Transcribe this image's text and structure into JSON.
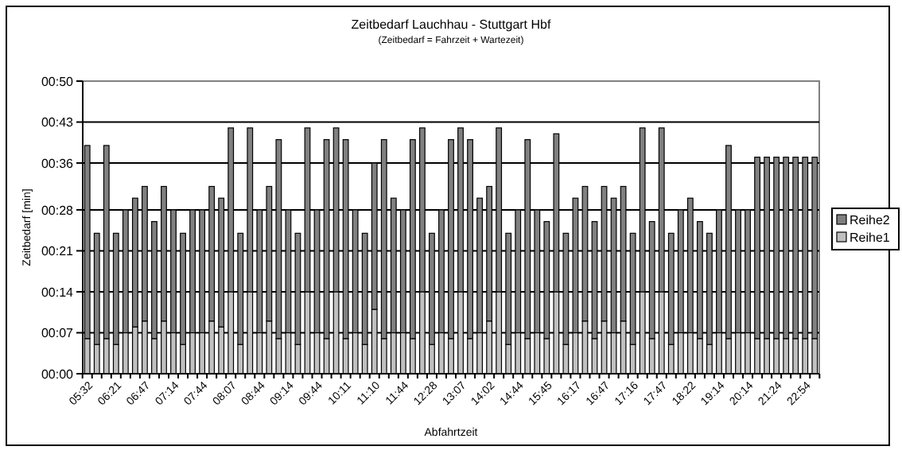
{
  "chart_data": {
    "type": "bar",
    "stacked": true,
    "title": "Zeitbedarf Lauchhau - Stuttgart Hbf",
    "subtitle": "(Zeitbedarf = Fahrzeit + Wartezeit)",
    "xlabel": "Abfahrtzeit",
    "ylabel": "Zeitbedarf [min]",
    "categories": [
      "05:32",
      null,
      null,
      "06:21",
      null,
      null,
      "06:47",
      null,
      null,
      "07:14",
      null,
      null,
      "07:44",
      null,
      null,
      "08:07",
      null,
      null,
      "08:44",
      null,
      null,
      "09:14",
      null,
      null,
      "09:44",
      null,
      null,
      "10:11",
      null,
      null,
      "11:10",
      null,
      null,
      "11:44",
      null,
      null,
      "12:28",
      null,
      null,
      "13:07",
      null,
      null,
      "14:02",
      null,
      null,
      "14:44",
      null,
      null,
      "15:45",
      null,
      null,
      "16:17",
      null,
      null,
      "16:47",
      null,
      null,
      "17:16",
      null,
      null,
      "17:47",
      null,
      null,
      "18:22",
      null,
      null,
      "19:14",
      null,
      null,
      "20:14",
      null,
      null,
      "21:24",
      null,
      null,
      "22:54",
      null
    ],
    "series": [
      {
        "name": "Reihe1",
        "color": "#c0c0c0",
        "values": [
          6,
          5,
          6,
          5,
          7,
          8,
          9,
          6,
          9,
          7,
          5,
          7,
          7,
          9,
          8,
          14,
          5,
          14,
          7,
          9,
          6,
          7,
          5,
          14,
          7,
          6,
          14,
          6,
          7,
          5,
          11,
          6,
          7,
          7,
          6,
          14,
          5,
          7,
          6,
          14,
          6,
          7,
          9,
          14,
          5,
          7,
          6,
          7,
          6,
          14,
          5,
          7,
          9,
          6,
          9,
          7,
          9,
          5,
          14,
          6,
          14,
          5,
          7,
          7,
          6,
          5,
          7,
          6,
          7,
          7,
          6,
          6,
          6,
          6,
          6,
          6,
          6
        ]
      },
      {
        "name": "Reihe2",
        "color": "#808080",
        "values": [
          33,
          19,
          33,
          19,
          21,
          22,
          23,
          20,
          23,
          21,
          19,
          21,
          21,
          23,
          22,
          28,
          19,
          28,
          21,
          23,
          34,
          21,
          19,
          28,
          21,
          34,
          28,
          34,
          21,
          19,
          25,
          34,
          23,
          21,
          34,
          28,
          19,
          21,
          34,
          28,
          34,
          23,
          23,
          28,
          19,
          21,
          34,
          21,
          20,
          27,
          19,
          23,
          23,
          20,
          23,
          23,
          23,
          19,
          28,
          20,
          28,
          19,
          21,
          23,
          20,
          19,
          21,
          33,
          21,
          21,
          31,
          31,
          31,
          31,
          31,
          31,
          31
        ]
      }
    ],
    "ylim": [
      0,
      50
    ],
    "yticks": [
      {
        "value": 0,
        "label": "00:00"
      },
      {
        "value": 7,
        "label": "00:07"
      },
      {
        "value": 14,
        "label": "00:14"
      },
      {
        "value": 21,
        "label": "00:21"
      },
      {
        "value": 28,
        "label": "00:28"
      },
      {
        "value": 36,
        "label": "00:36"
      },
      {
        "value": 43,
        "label": "00:43"
      },
      {
        "value": 50,
        "label": "00:50"
      }
    ],
    "grid": "y",
    "legend": "right"
  }
}
